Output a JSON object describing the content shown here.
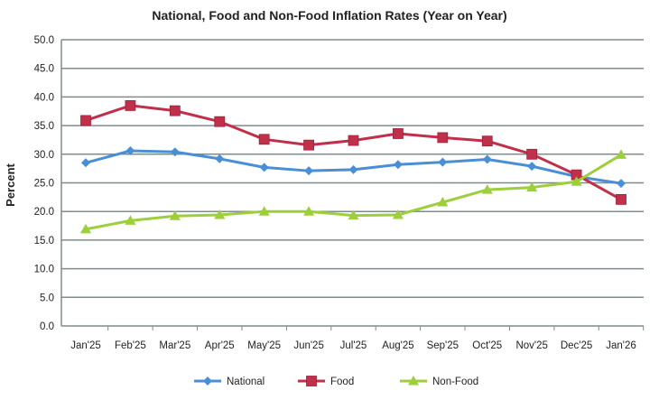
{
  "chart_data": {
    "type": "line",
    "title": "National, Food and Non-Food Inflation Rates (Year on Year)",
    "xlabel": "",
    "ylabel": "Percent",
    "ylim": [
      0,
      50
    ],
    "yticks": [
      "0.0",
      "5.0",
      "10.0",
      "15.0",
      "20.0",
      "25.0",
      "30.0",
      "35.0",
      "40.0",
      "45.0",
      "50.0"
    ],
    "grid": true,
    "legend": "bottom",
    "categories": [
      "Jan'25",
      "Feb'25",
      "Mar'25",
      "Apr'25",
      "May'25",
      "Jun'25",
      "Jul'25",
      "Aug'25",
      "Sep'25",
      "Oct'25",
      "Nov'25",
      "Dec'25",
      "Jan'26"
    ],
    "series": [
      {
        "name": "National",
        "color": "#4a8fd6",
        "marker": "diamond",
        "values": [
          28.5,
          30.6,
          30.4,
          29.2,
          27.7,
          27.1,
          27.3,
          28.2,
          28.6,
          29.1,
          27.9,
          26.1,
          24.9
        ]
      },
      {
        "name": "Food",
        "color": "#c0304a",
        "marker": "square",
        "values": [
          35.9,
          38.5,
          37.6,
          35.7,
          32.6,
          31.6,
          32.4,
          33.6,
          32.9,
          32.3,
          30.0,
          26.4,
          22.1
        ]
      },
      {
        "name": "Non-Food",
        "color": "#9ccf3a",
        "marker": "triangle",
        "values": [
          16.9,
          18.4,
          19.2,
          19.4,
          20.0,
          20.0,
          19.3,
          19.4,
          21.6,
          23.8,
          24.2,
          25.2,
          29.9
        ]
      }
    ]
  }
}
